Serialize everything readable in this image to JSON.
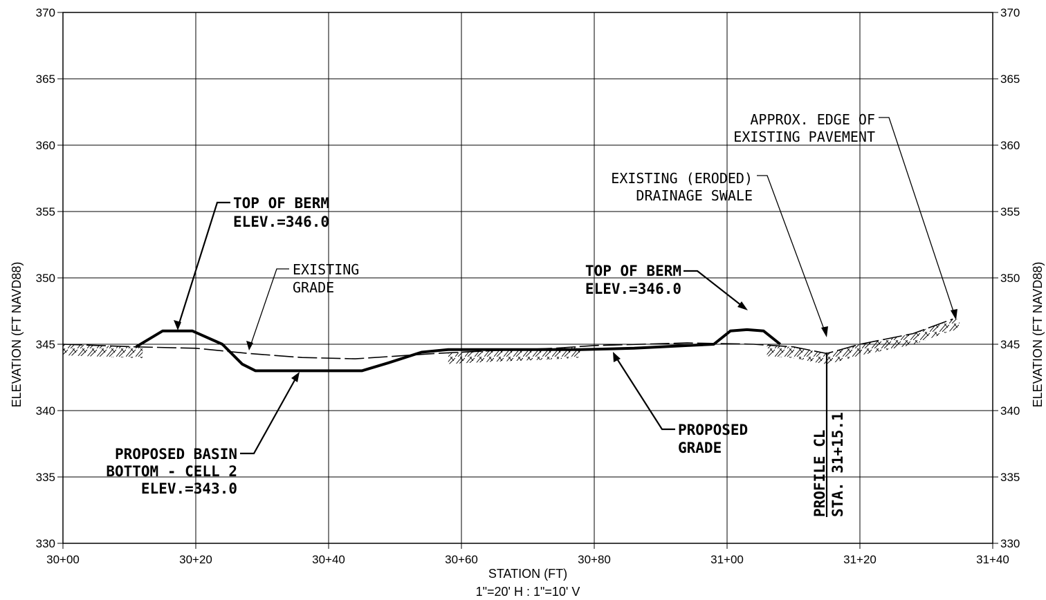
{
  "chart_data": {
    "type": "line",
    "xlabel": "STATION (FT)",
    "scale_note": "1\"=20' H : 1\"=10' V",
    "ylabel_left": "ELEVATION (FT NAVD88)",
    "ylabel_right": "ELEVATION (FT NAVD88)",
    "xlim": [
      0,
      140
    ],
    "ylim": [
      330,
      370
    ],
    "x_ticks": [
      {
        "value": 0,
        "label": "30+00"
      },
      {
        "value": 20,
        "label": "30+20"
      },
      {
        "value": 40,
        "label": "30+40"
      },
      {
        "value": 60,
        "label": "30+60"
      },
      {
        "value": 80,
        "label": "30+80"
      },
      {
        "value": 100,
        "label": "31+00"
      },
      {
        "value": 120,
        "label": "31+20"
      },
      {
        "value": 140,
        "label": "31+40"
      }
    ],
    "y_ticks": [
      330,
      335,
      340,
      345,
      350,
      355,
      360,
      365,
      370
    ],
    "grid": true,
    "series": [
      {
        "name": "PROPOSED GRADE",
        "style": "solid-thick",
        "points": [
          [
            11,
            344.8
          ],
          [
            15,
            346.0
          ],
          [
            19.5,
            346.0
          ],
          [
            24,
            345.0
          ],
          [
            27,
            343.5
          ],
          [
            29,
            343.0
          ],
          [
            45,
            343.0
          ],
          [
            49,
            343.6
          ],
          [
            54,
            344.4
          ],
          [
            58,
            344.6
          ],
          [
            78,
            344.6
          ],
          [
            86,
            344.7
          ],
          [
            94,
            344.9
          ],
          [
            98,
            345.0
          ],
          [
            100.5,
            346.0
          ],
          [
            103,
            346.1
          ],
          [
            105.5,
            346.0
          ],
          [
            108,
            345.0
          ]
        ]
      },
      {
        "name": "EXISTING GRADE",
        "style": "dashed",
        "points": [
          [
            0,
            345.0
          ],
          [
            11,
            344.8
          ],
          [
            20,
            344.7
          ],
          [
            28,
            344.3
          ],
          [
            36,
            344.0
          ],
          [
            44,
            343.9
          ],
          [
            50,
            344.1
          ],
          [
            56,
            344.3
          ],
          [
            64,
            344.5
          ],
          [
            74,
            344.7
          ],
          [
            80,
            344.9
          ],
          [
            94,
            345.1
          ],
          [
            104,
            345.0
          ],
          [
            110,
            344.8
          ],
          [
            115,
            344.3
          ],
          [
            120,
            345.0
          ],
          [
            128,
            345.8
          ],
          [
            134,
            346.9
          ]
        ]
      }
    ],
    "annotations": [
      {
        "id": "top-of-berm-left",
        "lines": [
          "TOP OF BERM",
          "ELEV.=346.0"
        ]
      },
      {
        "id": "existing-grade",
        "lines": [
          "EXISTING",
          "GRADE"
        ]
      },
      {
        "id": "basin-bottom",
        "lines": [
          "PROPOSED BASIN",
          "BOTTOM - CELL 2",
          "ELEV.=343.0"
        ]
      },
      {
        "id": "top-of-berm-right",
        "lines": [
          "TOP OF BERM",
          "ELEV.=346.0"
        ]
      },
      {
        "id": "proposed-grade",
        "lines": [
          "PROPOSED",
          "GRADE"
        ]
      },
      {
        "id": "drainage-swale",
        "lines": [
          "EXISTING (ERODED)",
          "DRAINAGE SWALE"
        ]
      },
      {
        "id": "edge-pavement",
        "lines": [
          "APPROX. EDGE OF",
          "EXISTING PAVEMENT"
        ]
      },
      {
        "id": "profile-cl",
        "lines": [
          "PROFILE CL",
          "STA. 31+15.1"
        ],
        "station": 115.1
      }
    ]
  }
}
